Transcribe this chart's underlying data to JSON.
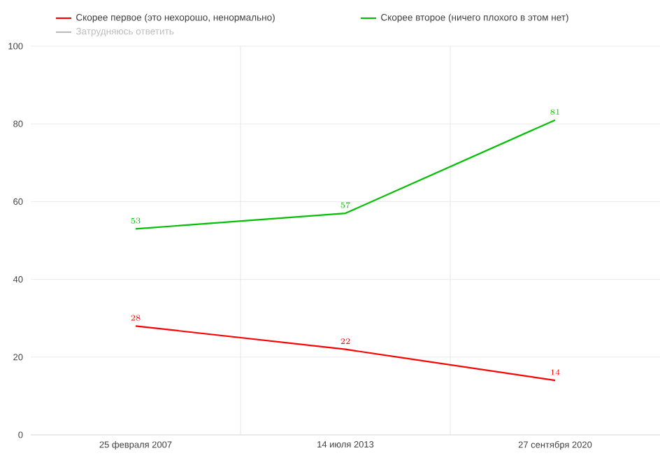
{
  "chart_data": {
    "type": "line",
    "categories": [
      "25 февраля 2007",
      "14 июля 2013",
      "27 сентября 2020"
    ],
    "series": [
      {
        "name": "Скорее первое (это нехорошо, ненормально)",
        "color": "#ff0000",
        "values": [
          28,
          22,
          14
        ]
      },
      {
        "name": "Скорее второе (ничего плохого в этом нет)",
        "color": "#00c000",
        "values": [
          53,
          57,
          81
        ]
      },
      {
        "name": "Затрудняюсь ответить",
        "color": "#bbbbbb",
        "values": [
          null,
          null,
          null
        ]
      }
    ],
    "ylim": [
      0,
      100
    ],
    "yticks": [
      0,
      20,
      40,
      60,
      80,
      100
    ],
    "grid": true,
    "legend": "top",
    "data_labels": true,
    "marker": "none",
    "line_style": "solid"
  }
}
